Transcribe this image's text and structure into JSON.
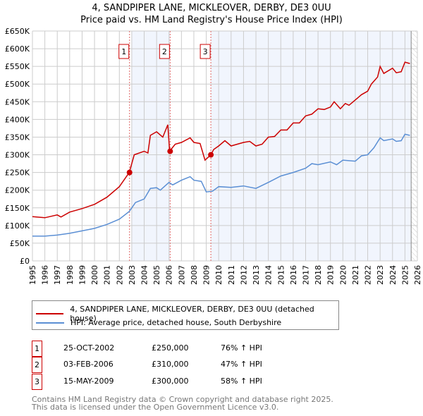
{
  "chart_data": {
    "type": "line",
    "title": "4, SANDPIPER LANE, MICKLEOVER, DERBY, DE3 0UU",
    "subtitle": "Price paid vs. HM Land Registry's House Price Index (HPI)",
    "xlim": [
      1995,
      2026
    ],
    "ylim": [
      0,
      650000
    ],
    "x_ticks": [
      "1995",
      "1996",
      "1997",
      "1998",
      "1999",
      "2000",
      "2001",
      "2002",
      "2003",
      "2004",
      "2005",
      "2006",
      "2007",
      "2008",
      "2009",
      "2010",
      "2011",
      "2012",
      "2013",
      "2014",
      "2015",
      "2016",
      "2017",
      "2018",
      "2019",
      "2020",
      "2021",
      "2022",
      "2023",
      "2024",
      "2025",
      "2026"
    ],
    "y_ticks": [
      "£0",
      "£50K",
      "£100K",
      "£150K",
      "£200K",
      "£250K",
      "£300K",
      "£350K",
      "£400K",
      "£450K",
      "£500K",
      "£550K",
      "£600K",
      "£650K"
    ],
    "grid": true,
    "series": [
      {
        "name": "4, SANDPIPER LANE, MICKLEOVER, DERBY, DE3 0UU (detached house)",
        "color": "#cc0000",
        "x": [
          1995,
          1996,
          1997,
          1997.3,
          1998,
          1999,
          2000,
          2001,
          2002,
          2002.8,
          2003.2,
          2004,
          2004.3,
          2004.5,
          2005,
          2005.5,
          2005.9,
          2006.05,
          2006.5,
          2007,
          2007.7,
          2008,
          2008.5,
          2008.9,
          2009.37,
          2009.6,
          2010,
          2010.5,
          2011,
          2011.5,
          2012,
          2012.5,
          2013,
          2013.5,
          2014,
          2014.5,
          2015,
          2015.5,
          2016,
          2016.5,
          2017,
          2017.5,
          2018,
          2018.5,
          2019,
          2019.3,
          2019.8,
          2020.2,
          2020.5,
          2021,
          2021.5,
          2022,
          2022.3,
          2022.8,
          2023,
          2023.3,
          2024,
          2024.3,
          2024.7,
          2025,
          2025.4
        ],
        "y": [
          125000,
          122000,
          130000,
          124000,
          138000,
          148000,
          160000,
          180000,
          210000,
          250000,
          300000,
          310000,
          305000,
          355000,
          365000,
          350000,
          385000,
          310000,
          330000,
          335000,
          348000,
          335000,
          332000,
          285000,
          300000,
          315000,
          325000,
          340000,
          325000,
          330000,
          335000,
          338000,
          325000,
          330000,
          350000,
          352000,
          370000,
          370000,
          390000,
          390000,
          410000,
          415000,
          430000,
          428000,
          435000,
          450000,
          430000,
          445000,
          440000,
          455000,
          470000,
          480000,
          500000,
          520000,
          550000,
          530000,
          545000,
          532000,
          535000,
          562000,
          558000
        ]
      },
      {
        "name": "HPI: Average price, detached house, South Derbyshire",
        "color": "#5b8fd4",
        "x": [
          1995,
          1996,
          1997,
          1998,
          1999,
          2000,
          2001,
          2002,
          2002.8,
          2003.3,
          2004,
          2004.5,
          2005,
          2005.3,
          2006,
          2006.3,
          2007,
          2007.7,
          2008,
          2008.6,
          2009,
          2009.5,
          2010,
          2011,
          2012,
          2013,
          2014,
          2015,
          2016,
          2017,
          2017.5,
          2018,
          2019,
          2019.5,
          2020,
          2021,
          2021.5,
          2022,
          2022.5,
          2023,
          2023.3,
          2024,
          2024.3,
          2024.7,
          2025,
          2025.4
        ],
        "y": [
          70000,
          70000,
          73000,
          78000,
          85000,
          92000,
          103000,
          118000,
          140000,
          165000,
          175000,
          205000,
          207000,
          200000,
          222000,
          215000,
          228000,
          238000,
          228000,
          225000,
          195000,
          197000,
          210000,
          208000,
          212000,
          205000,
          222000,
          240000,
          250000,
          262000,
          275000,
          272000,
          280000,
          272000,
          285000,
          282000,
          297000,
          300000,
          320000,
          348000,
          340000,
          345000,
          338000,
          340000,
          358000,
          355000
        ]
      }
    ],
    "sales": [
      {
        "label": "1",
        "x": 2002.82,
        "y": 250000,
        "date": "25-OCT-2002",
        "price": "£250,000",
        "hpi": "76% ↑ HPI"
      },
      {
        "label": "2",
        "x": 2006.09,
        "y": 310000,
        "date": "03-FEB-2006",
        "price": "£310,000",
        "hpi": "47% ↑ HPI"
      },
      {
        "label": "3",
        "x": 2009.37,
        "y": 300000,
        "date": "15-MAY-2009",
        "price": "£300,000",
        "hpi": "58% ↑ HPI"
      }
    ],
    "shaded_ranges": [
      [
        2003,
        2006.09
      ],
      [
        2009.37,
        2025.5
      ]
    ],
    "data_end": 2025.5,
    "legend_placement": "below"
  },
  "footer": [
    "Contains HM Land Registry data © Crown copyright and database right 2025.",
    "This data is licensed under the Open Government Licence v3.0."
  ]
}
